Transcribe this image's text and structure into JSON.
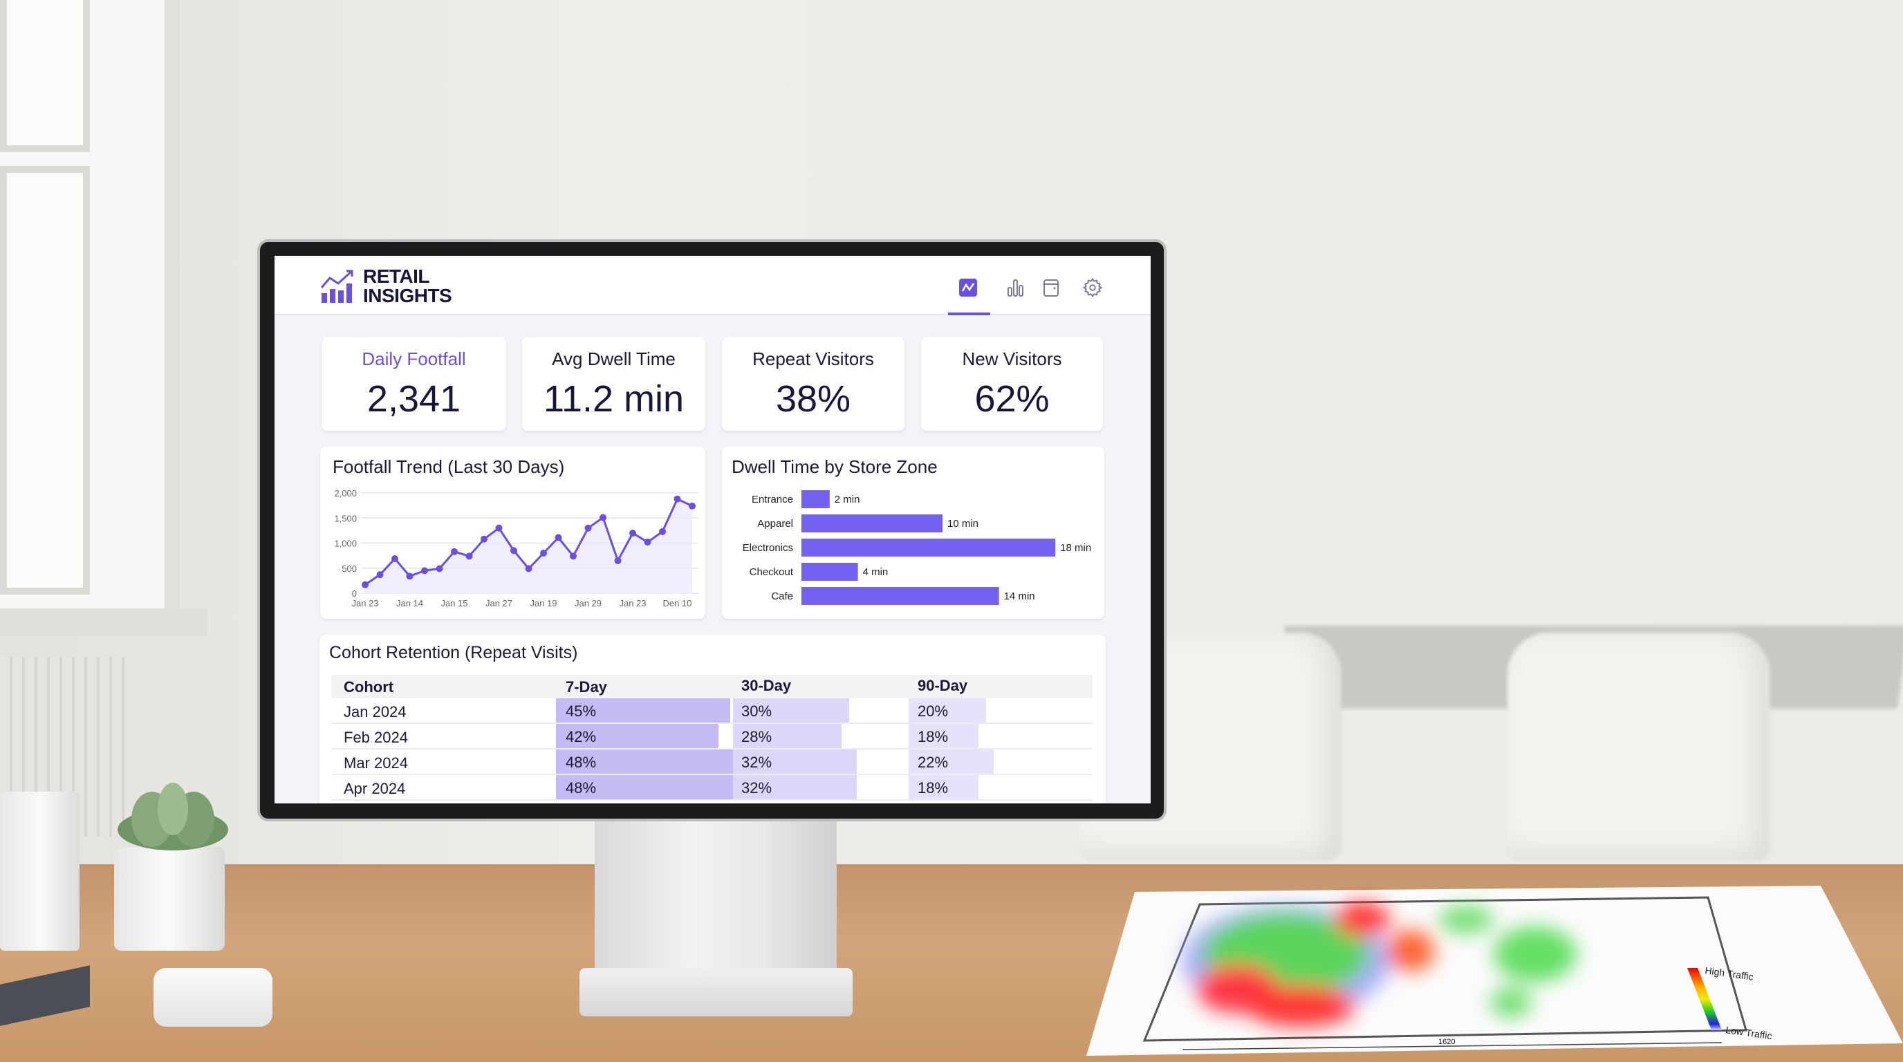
{
  "app": {
    "title_line1": "RETAIL",
    "title_line2": "INSIGHTS"
  },
  "nav": [
    {
      "icon": "line-chart-icon",
      "active": true
    },
    {
      "icon": "bar-chart-icon",
      "active": false
    },
    {
      "icon": "calendar-icon",
      "active": false
    },
    {
      "icon": "gear-icon",
      "active": false
    }
  ],
  "kpis": [
    {
      "label": "Daily Footfall",
      "value": "2,341"
    },
    {
      "label": "Avg Dwell Time",
      "value": "11.2 min"
    },
    {
      "label": "Repeat Visitors",
      "value": "38%"
    },
    {
      "label": "New Visitors",
      "value": "62%"
    }
  ],
  "colors": {
    "accent": "#6b4fe0",
    "text": "#17153a",
    "fill": "#ece8fb",
    "cell7": "#c6baf4",
    "cell30": "#ddd6f9",
    "cell90": "#e7e2fb"
  },
  "chart_data": [
    {
      "type": "line",
      "title": "Footfall Trend (Last 30 Days)",
      "ylim": [
        0,
        2000
      ],
      "yticks": [
        "0",
        "500",
        "1,000",
        "1,500",
        "2,000"
      ],
      "ytick_values": [
        0,
        500,
        1000,
        1500,
        2000
      ],
      "xtick_labels": [
        "Jan 23",
        "Jan 14",
        "Jan 15",
        "Jan 27",
        "Jan 19",
        "Jan 29",
        "Jan 23",
        "Den 10"
      ],
      "xtick_every": 3,
      "values": [
        170,
        370,
        690,
        340,
        450,
        490,
        830,
        740,
        1080,
        1300,
        850,
        490,
        800,
        1110,
        740,
        1300,
        1510,
        650,
        1200,
        1020,
        1230,
        1880,
        1740
      ],
      "grid": true
    },
    {
      "type": "bar",
      "orientation": "horizontal",
      "title": "Dwell Time by Store Zone",
      "categories": [
        "Entrance",
        "Apparel",
        "Electronics",
        "Checkout",
        "Cafe"
      ],
      "values": [
        2,
        10,
        18,
        4,
        14
      ],
      "labels": [
        "2 min",
        "10 min",
        "18 min",
        "4 min",
        "14 min"
      ],
      "unit": "min"
    }
  ],
  "cohort": {
    "title": "Cohort Retention (Repeat Visits)",
    "headers": [
      "Cohort",
      "7-Day",
      "30-Day",
      "90-Day"
    ],
    "rows": [
      {
        "cohort": "Jan 2024",
        "d7": "45%",
        "d30": "30%",
        "d90": "20%",
        "v": [
          45,
          30,
          20
        ]
      },
      {
        "cohort": "Feb 2024",
        "d7": "42%",
        "d30": "28%",
        "d90": "18%",
        "v": [
          42,
          28,
          18
        ]
      },
      {
        "cohort": "Mar 2024",
        "d7": "48%",
        "d30": "32%",
        "d90": "22%",
        "v": [
          48,
          32,
          22
        ]
      },
      {
        "cohort": "Apr 2024",
        "d7": "48%",
        "d30": "32%",
        "d90": "18%",
        "v": [
          48,
          32,
          18
        ]
      }
    ]
  },
  "paper": {
    "legend_high": "High Traffic",
    "legend_low": "Low Traffic",
    "dimension": "1620"
  }
}
